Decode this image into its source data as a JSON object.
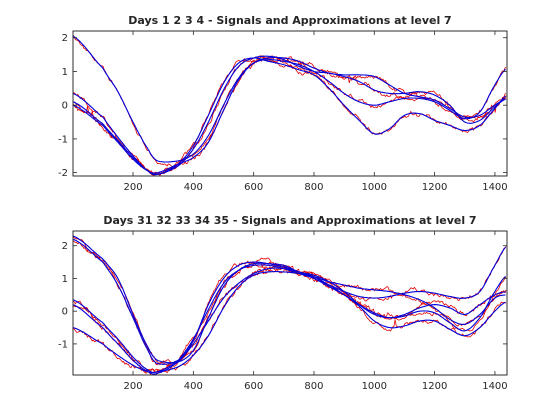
{
  "figure": {
    "background": "#ffffff",
    "signal_color": "#e00000",
    "approx_color": "#0000dd"
  },
  "chart_data": [
    {
      "type": "line",
      "title": "Days  1  2  3  4 - Signals and Approximations at level 7",
      "xlim": [
        1,
        1440
      ],
      "ylim": [
        -2.1,
        2.2
      ],
      "xticks": [
        200,
        400,
        600,
        800,
        1000,
        1200,
        1400
      ],
      "yticks": [
        -2,
        -1,
        0,
        1,
        2
      ],
      "knots_x": [
        1,
        100,
        150,
        200,
        250,
        280,
        350,
        400,
        450,
        500,
        550,
        600,
        650,
        700,
        750,
        800,
        850,
        900,
        950,
        1000,
        1050,
        1100,
        1150,
        1200,
        1250,
        1300,
        1350,
        1400,
        1440
      ],
      "series": [
        {
          "values": [
            2.05,
            1.1,
            0.4,
            -0.5,
            -1.3,
            -1.65,
            -1.65,
            -1.45,
            -0.9,
            0.0,
            0.8,
            1.25,
            1.35,
            1.3,
            1.2,
            1.0,
            0.7,
            0.35,
            0.1,
            0.0,
            0.1,
            0.2,
            0.2,
            0.1,
            -0.15,
            -0.4,
            -0.2,
            0.6,
            1.1
          ]
        },
        {
          "values": [
            0.1,
            -0.55,
            -1.05,
            -1.55,
            -1.95,
            -2.05,
            -1.8,
            -1.3,
            -0.5,
            0.45,
            1.15,
            1.4,
            1.45,
            1.35,
            1.15,
            1.0,
            0.95,
            0.85,
            0.7,
            0.45,
            0.35,
            0.35,
            0.4,
            0.3,
            0.0,
            -0.5,
            -0.45,
            -0.05,
            0.2
          ]
        },
        {
          "values": [
            0.35,
            -0.35,
            -0.95,
            -1.5,
            -1.95,
            -2.05,
            -1.75,
            -1.2,
            -0.3,
            0.65,
            1.25,
            1.4,
            1.3,
            1.2,
            1.05,
            0.9,
            0.5,
            0.0,
            -0.45,
            -0.85,
            -0.7,
            -0.3,
            -0.25,
            -0.45,
            -0.6,
            -0.75,
            -0.6,
            -0.1,
            0.3
          ]
        },
        {
          "values": [
            0.0,
            -0.6,
            -1.1,
            -1.6,
            -1.95,
            -2.0,
            -1.75,
            -1.55,
            -1.1,
            -0.15,
            0.75,
            1.25,
            1.4,
            1.4,
            1.3,
            1.1,
            0.95,
            0.9,
            0.9,
            0.85,
            0.6,
            0.35,
            0.25,
            0.15,
            -0.1,
            -0.35,
            -0.3,
            0.0,
            0.2
          ]
        }
      ]
    },
    {
      "type": "line",
      "title": "Days 31  32  33  34  35 - Signals and Approximations at level 7",
      "xlim": [
        1,
        1440
      ],
      "ylim": [
        -1.95,
        2.45
      ],
      "xticks": [
        200,
        400,
        600,
        800,
        1000,
        1200,
        1400
      ],
      "yticks": [
        -1,
        0,
        1,
        2
      ],
      "knots_x": [
        1,
        100,
        150,
        200,
        250,
        280,
        350,
        400,
        450,
        500,
        550,
        600,
        650,
        700,
        750,
        800,
        850,
        900,
        950,
        1000,
        1050,
        1100,
        1150,
        1200,
        1250,
        1300,
        1350,
        1400,
        1440
      ],
      "series": [
        {
          "values": [
            2.2,
            1.5,
            0.8,
            -0.2,
            -1.2,
            -1.6,
            -1.5,
            -0.9,
            0.2,
            1.0,
            1.4,
            1.5,
            1.45,
            1.35,
            1.2,
            1.0,
            0.8,
            0.6,
            0.45,
            0.4,
            0.45,
            0.55,
            0.6,
            0.55,
            0.45,
            0.4,
            0.6,
            1.4,
            2.0
          ]
        },
        {
          "values": [
            2.3,
            1.6,
            1.0,
            -0.1,
            -1.1,
            -1.5,
            -1.55,
            -1.2,
            -0.2,
            0.75,
            1.25,
            1.45,
            1.45,
            1.4,
            1.2,
            1.1,
            0.9,
            0.6,
            0.2,
            -0.1,
            -0.2,
            -0.15,
            0.0,
            -0.05,
            -0.35,
            -0.6,
            -0.2,
            0.6,
            1.1
          ]
        },
        {
          "values": [
            0.2,
            -0.5,
            -1.0,
            -1.5,
            -1.85,
            -1.9,
            -1.55,
            -1.0,
            -0.3,
            0.4,
            0.85,
            1.15,
            1.3,
            1.3,
            1.2,
            1.05,
            0.8,
            0.5,
            0.15,
            -0.3,
            -0.5,
            -0.45,
            -0.3,
            -0.3,
            -0.55,
            -0.75,
            -0.5,
            0.0,
            0.3
          ]
        },
        {
          "values": [
            0.35,
            -0.35,
            -0.85,
            -1.4,
            -1.8,
            -1.85,
            -1.5,
            -0.85,
            0.05,
            0.85,
            1.25,
            1.4,
            1.4,
            1.3,
            1.15,
            1.0,
            0.75,
            0.5,
            0.2,
            -0.05,
            -0.2,
            -0.1,
            0.1,
            0.2,
            0.1,
            -0.1,
            0.2,
            0.5,
            0.6
          ]
        },
        {
          "values": [
            -0.5,
            -1.0,
            -1.35,
            -1.65,
            -1.85,
            -1.85,
            -1.7,
            -1.35,
            -0.75,
            0.1,
            0.75,
            1.1,
            1.2,
            1.2,
            1.15,
            1.05,
            0.9,
            0.8,
            0.7,
            0.65,
            0.6,
            0.5,
            0.35,
            0.1,
            -0.25,
            -0.4,
            -0.1,
            0.4,
            0.5
          ]
        }
      ]
    }
  ]
}
